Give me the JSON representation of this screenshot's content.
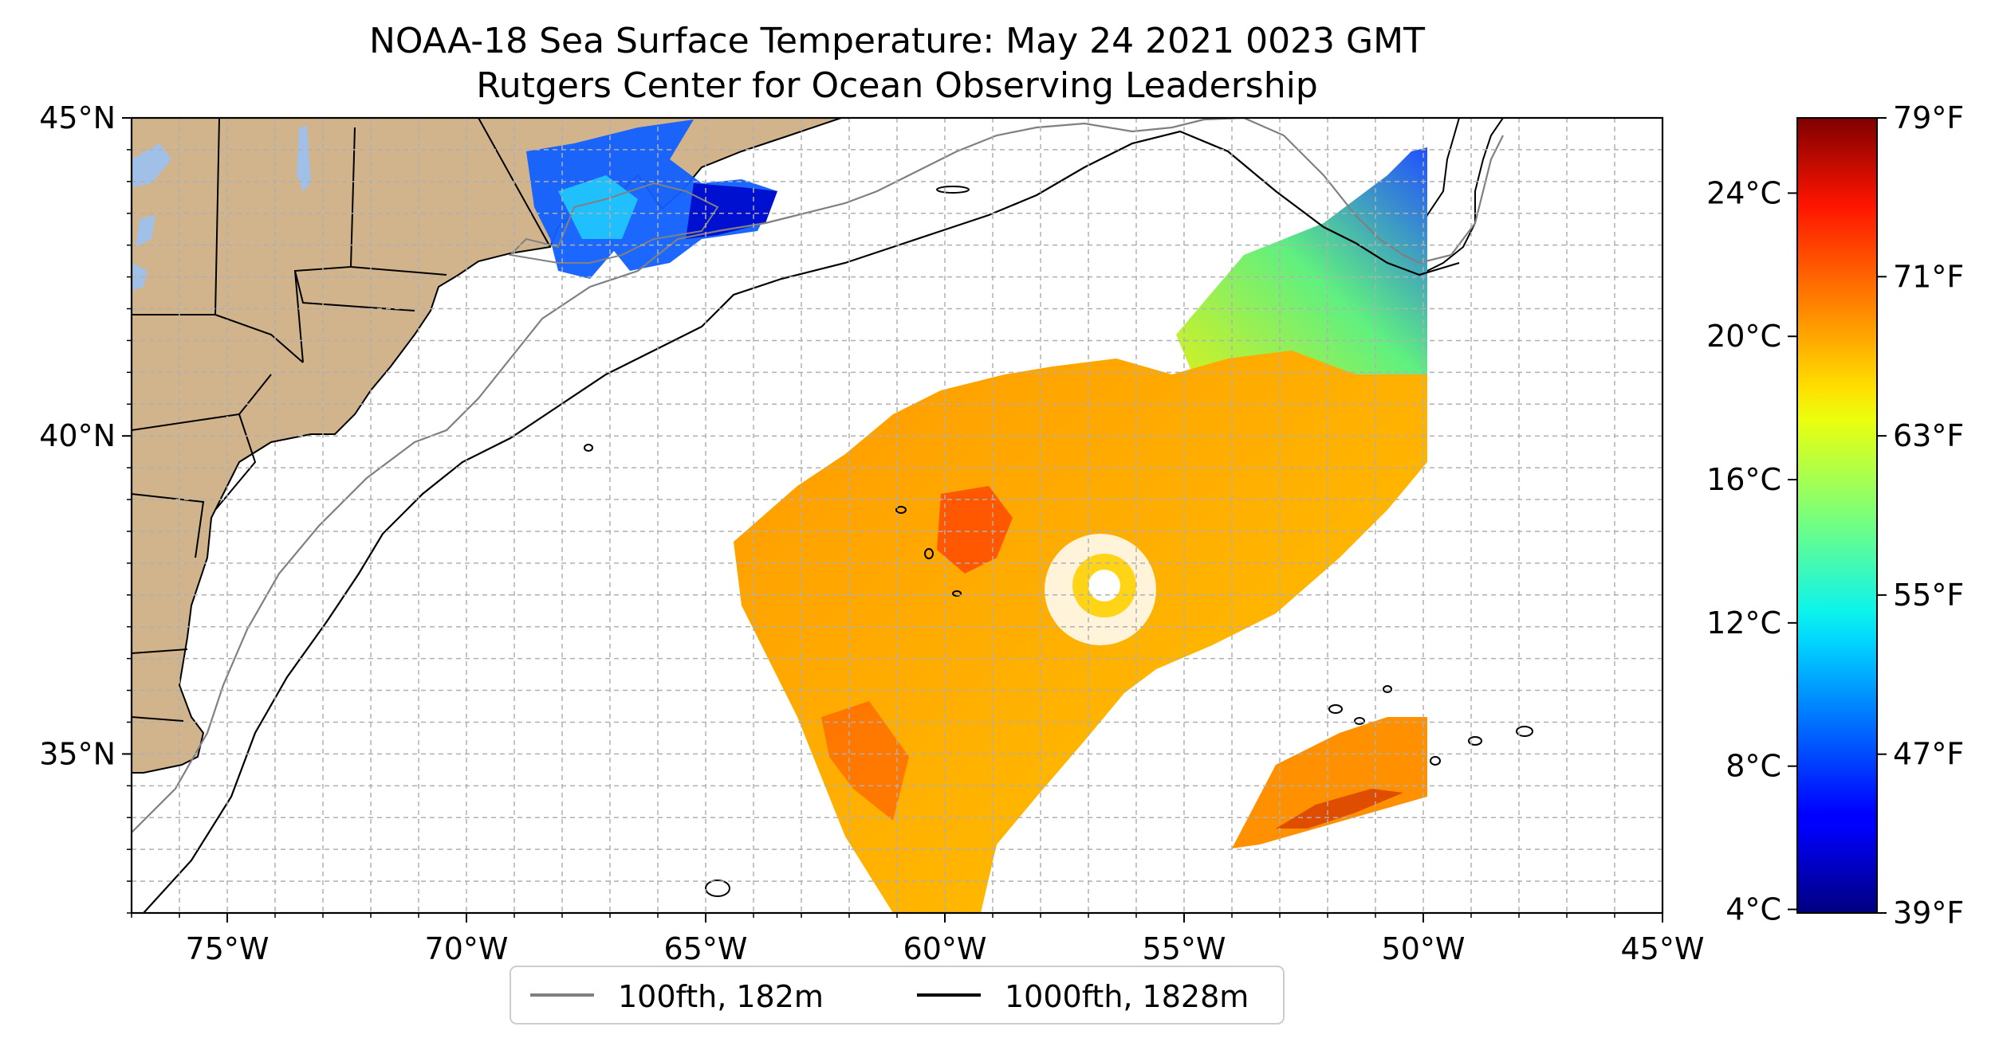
{
  "title": "NOAA-18 Sea Surface Temperature: May 24 2021 0023 GMT",
  "subtitle": "Rutgers Center for Ocean Observing Leadership",
  "map": {
    "lon_range": [
      -77,
      -45
    ],
    "lat_range": [
      32.5,
      45
    ],
    "lon_ticks": [
      {
        "value": -75,
        "label": "75°W"
      },
      {
        "value": -70,
        "label": "70°W"
      },
      {
        "value": -65,
        "label": "65°W"
      },
      {
        "value": -60,
        "label": "60°W"
      },
      {
        "value": -55,
        "label": "55°W"
      },
      {
        "value": -50,
        "label": "50°W"
      },
      {
        "value": -45,
        "label": "45°W"
      }
    ],
    "lat_ticks": [
      {
        "value": 45,
        "label": "45°N"
      },
      {
        "value": 40,
        "label": "40°N"
      },
      {
        "value": 35,
        "label": "35°N"
      }
    ],
    "gridlines": true,
    "land_color": "#d2b48c",
    "lake_color": "#a0c0e8"
  },
  "legend": {
    "placement": "bottom-center",
    "items": [
      {
        "label": "100fth, 182m",
        "color": "#808080"
      },
      {
        "label": "1000fth, 1828m",
        "color": "#000000"
      }
    ]
  },
  "colorbar": {
    "colormap": "jet",
    "celsius_range": [
      3.9,
      26.1
    ],
    "celsius_ticks": [
      {
        "value": 4,
        "label": "4°C"
      },
      {
        "value": 8,
        "label": "8°C"
      },
      {
        "value": 12,
        "label": "12°C"
      },
      {
        "value": 16,
        "label": "16°C"
      },
      {
        "value": 20,
        "label": "20°C"
      },
      {
        "value": 24,
        "label": "24°C"
      }
    ],
    "fahrenheit_ticks": [
      {
        "value": 39,
        "label": "39°F"
      },
      {
        "value": 47,
        "label": "47°F"
      },
      {
        "value": 55,
        "label": "55°F"
      },
      {
        "value": 63,
        "label": "63°F"
      },
      {
        "value": 71,
        "label": "71°F"
      },
      {
        "value": 79,
        "label": "79°F"
      }
    ]
  }
}
